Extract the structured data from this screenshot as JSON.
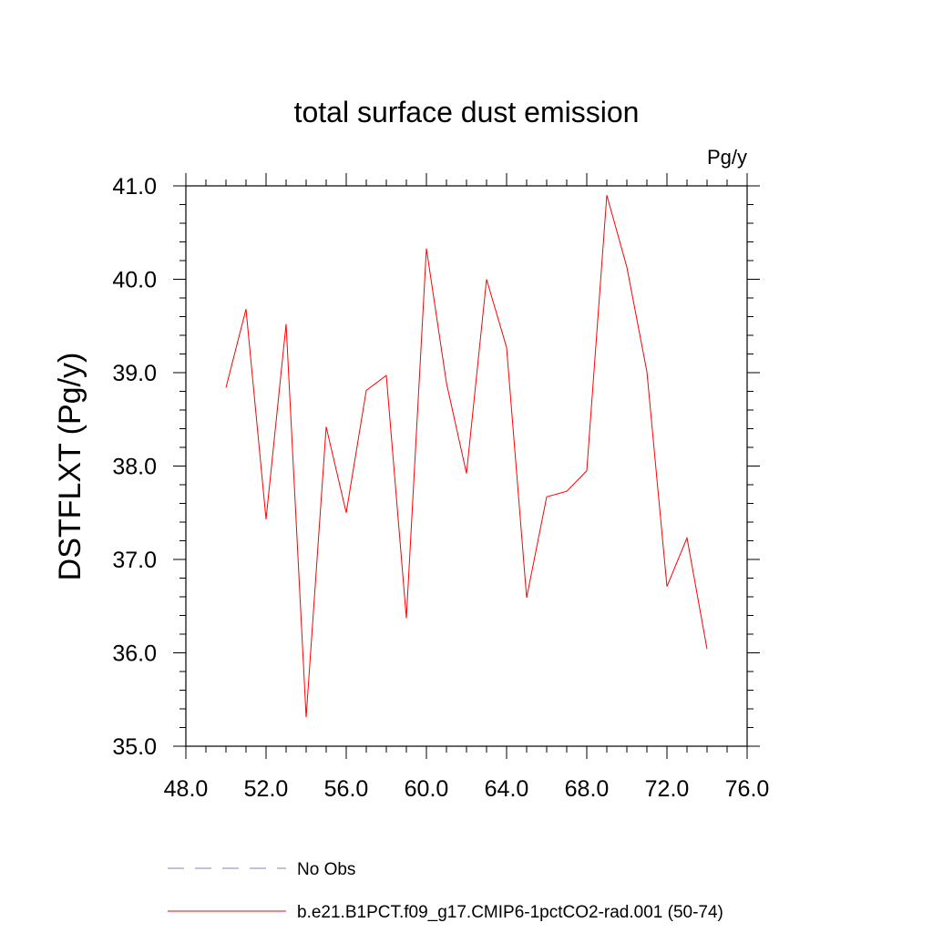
{
  "chart_data": {
    "type": "line",
    "title": "total surface dust emission",
    "units_label": "Pg/y",
    "ylabel": "DSTFLXT  (Pg/y)",
    "xlabel": "",
    "xlim": [
      48,
      76
    ],
    "ylim": [
      35,
      41
    ],
    "x_ticks": [
      48,
      52,
      56,
      60,
      64,
      68,
      72,
      76
    ],
    "x_tick_labels": [
      "48.0",
      "52.0",
      "56.0",
      "60.0",
      "64.0",
      "68.0",
      "72.0",
      "76.0"
    ],
    "y_ticks": [
      35,
      36,
      37,
      38,
      39,
      40,
      41
    ],
    "y_tick_labels": [
      "35.0",
      "36.0",
      "37.0",
      "38.0",
      "39.0",
      "40.0",
      "41.0"
    ],
    "grid": false,
    "x": [
      50,
      51,
      52,
      53,
      54,
      55,
      56,
      57,
      58,
      59,
      60,
      61,
      62,
      63,
      64,
      65,
      66,
      67,
      68,
      69,
      70,
      71,
      72,
      73,
      74
    ],
    "series": [
      {
        "name": "b.e21.B1PCT.f09_g17.CMIP6-1pctCO2-rad.001 (50-74)",
        "color": "#ff0000",
        "values": [
          38.84,
          39.68,
          37.43,
          39.52,
          35.31,
          38.42,
          37.5,
          38.81,
          38.97,
          36.37,
          40.33,
          38.89,
          37.92,
          40.0,
          39.27,
          36.59,
          37.67,
          37.73,
          37.95,
          40.9,
          40.13,
          39.01,
          36.71,
          37.23,
          36.04
        ]
      }
    ],
    "legend": {
      "placement": "bottom",
      "entries": [
        {
          "label": "No Obs",
          "color": "#8080c0",
          "style": "dashed"
        },
        {
          "label": "b.e21.B1PCT.f09_g17.CMIP6-1pctCO2-rad.001 (50-74)",
          "color": "#ff0000",
          "style": "solid"
        }
      ]
    }
  }
}
